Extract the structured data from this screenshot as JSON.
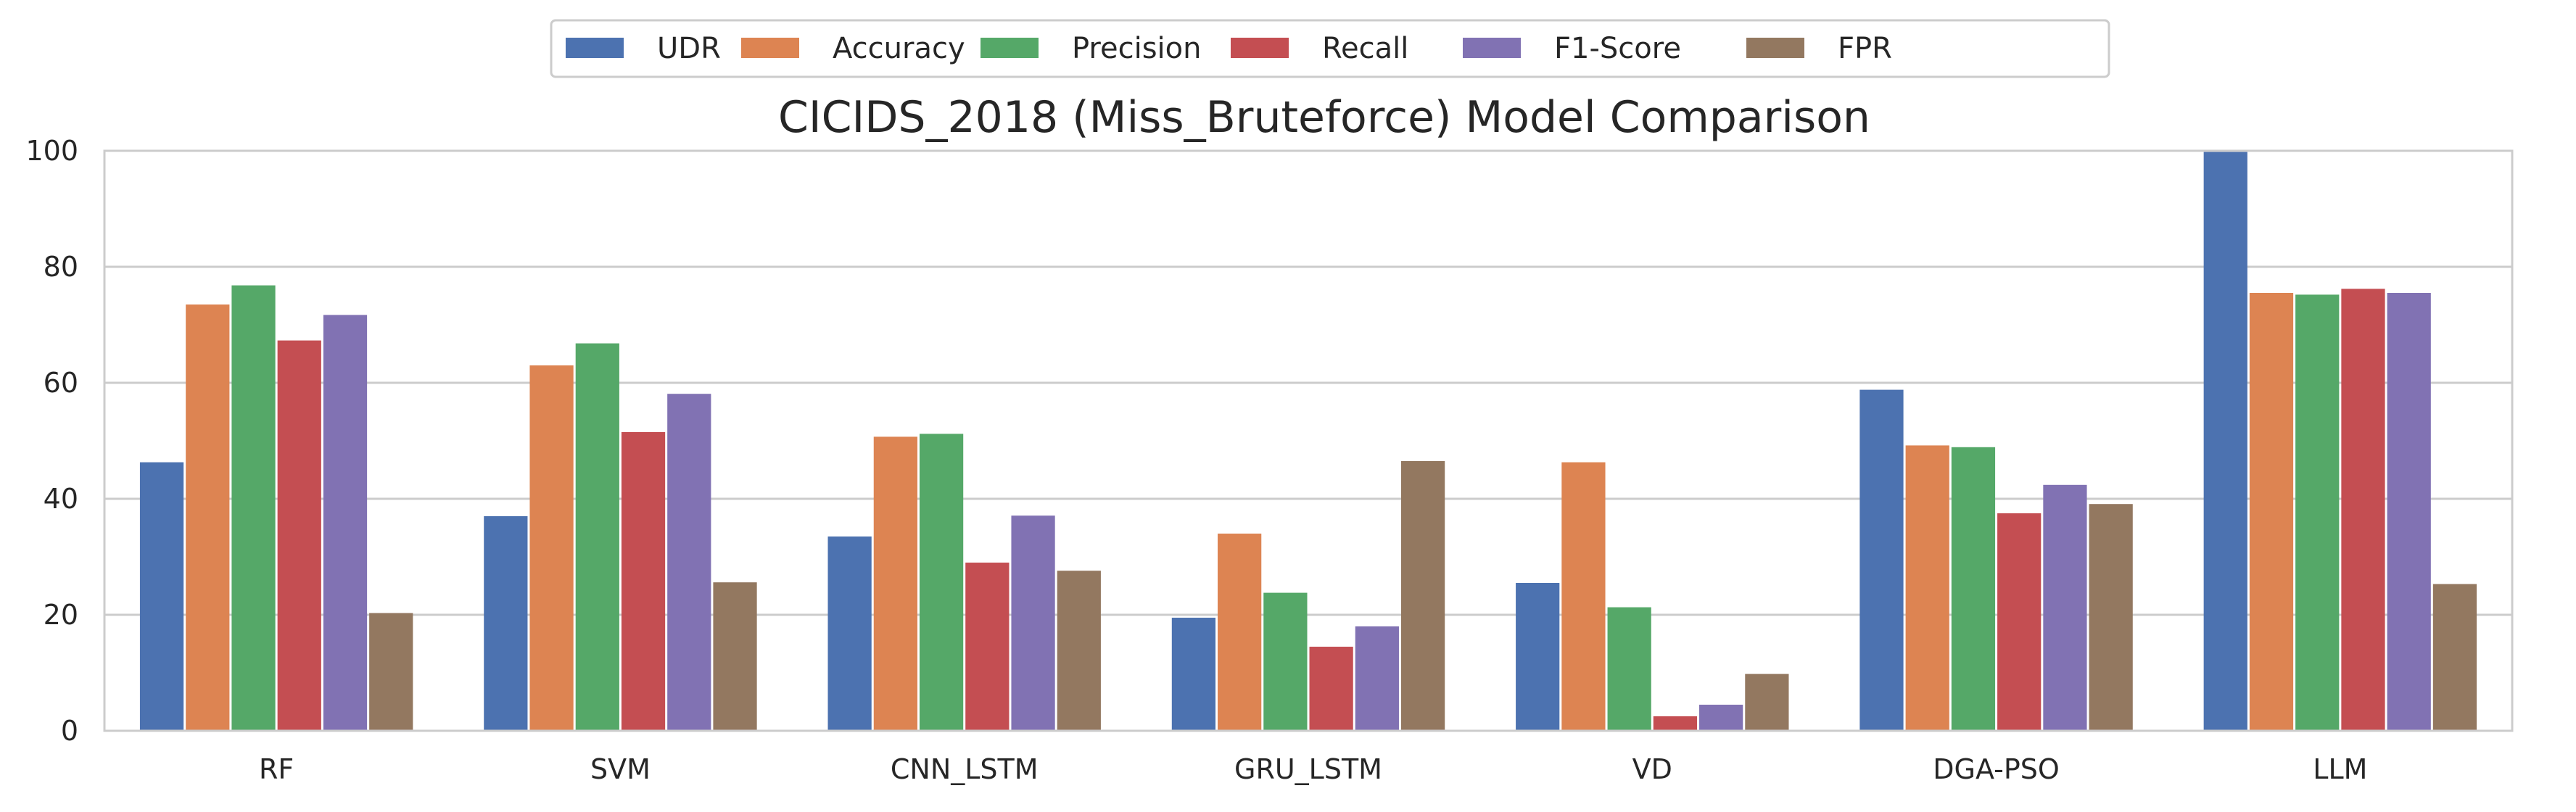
{
  "chart_data": {
    "type": "bar",
    "title": "CICIDS_2018 (Miss_Bruteforce) Model Comparison",
    "xlabel": "",
    "ylabel": "",
    "ylim": [
      0,
      100
    ],
    "yticks": [
      "0",
      "20",
      "40",
      "60",
      "80",
      "100"
    ],
    "grid": "horizontal",
    "legend_position": "top-center",
    "categories": [
      "RF",
      "SVM",
      "CNN_LSTM",
      "GRU_LSTM",
      "VD",
      "DGA-PSO",
      "LLM"
    ],
    "series": [
      {
        "name": "UDR",
        "color": "#4c72b0",
        "values": [
          46.3,
          37.0,
          33.5,
          19.5,
          25.5,
          58.8,
          99.8
        ]
      },
      {
        "name": "Accuracy",
        "color": "#dd8452",
        "values": [
          73.5,
          63.0,
          50.7,
          34.0,
          46.3,
          49.2,
          75.5
        ]
      },
      {
        "name": "Precision",
        "color": "#55a868",
        "values": [
          76.8,
          66.8,
          51.2,
          23.8,
          21.3,
          48.9,
          75.2
        ]
      },
      {
        "name": "Recall",
        "color": "#c44e52",
        "values": [
          67.3,
          51.5,
          29.0,
          14.5,
          2.5,
          37.5,
          76.2
        ]
      },
      {
        "name": "F1-Score",
        "color": "#8172b3",
        "values": [
          71.7,
          58.1,
          37.1,
          18.0,
          4.5,
          42.4,
          75.5
        ]
      },
      {
        "name": "FPR",
        "color": "#937860",
        "values": [
          20.3,
          25.6,
          27.6,
          46.5,
          9.8,
          39.1,
          25.3
        ]
      }
    ]
  }
}
